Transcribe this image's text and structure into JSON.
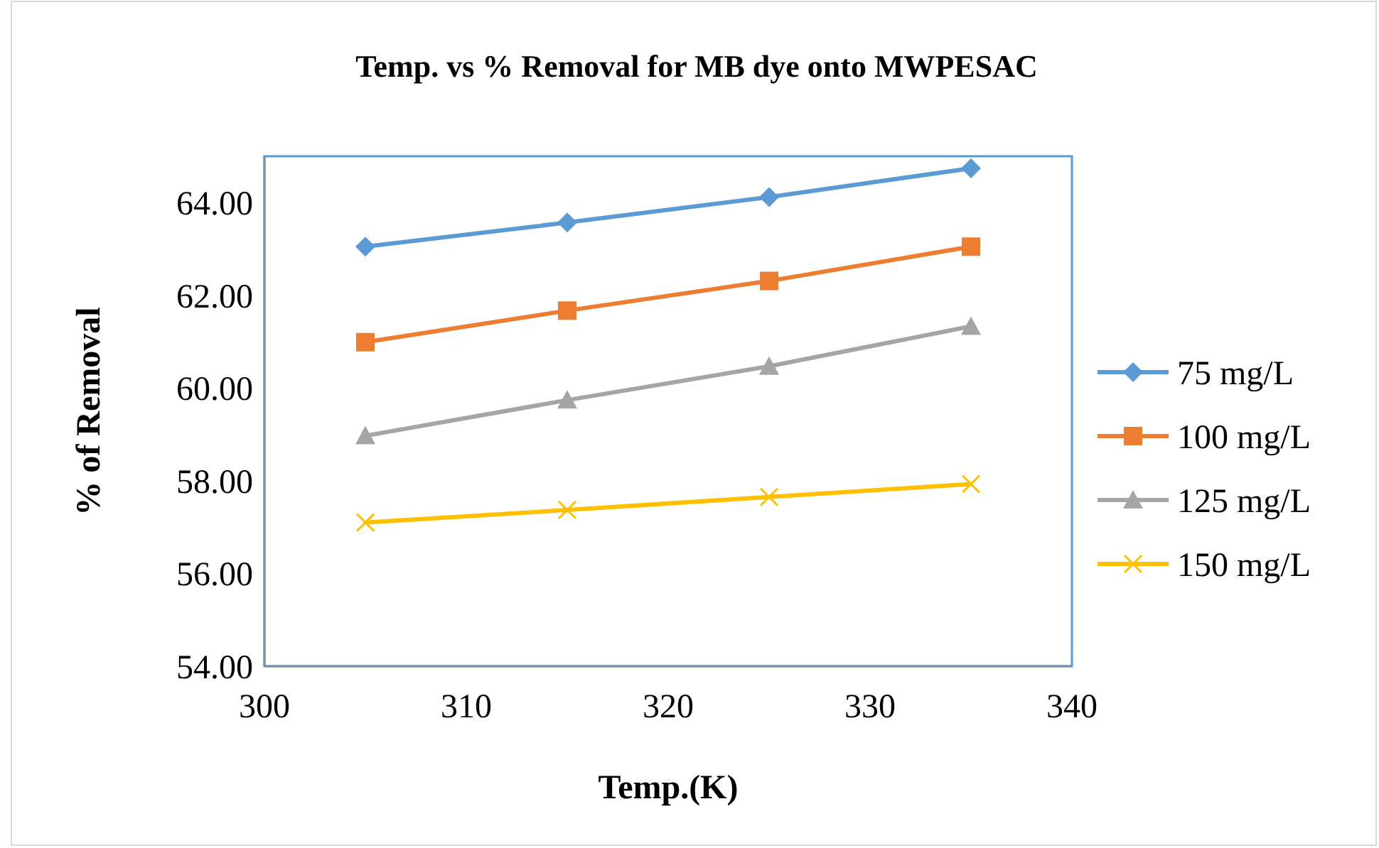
{
  "chart_data": {
    "type": "line",
    "title": "Temp. vs % Removal for MB dye onto MWPESAC",
    "xlabel": "Temp.(K)",
    "ylabel": "% of Removal",
    "x": [
      305,
      315,
      325,
      335
    ],
    "series": [
      {
        "name": "75 mg/L",
        "color": "#5b9bd5",
        "marker": "diamond",
        "values": [
          63.05,
          63.57,
          64.12,
          64.74
        ]
      },
      {
        "name": "100 mg/L",
        "color": "#ed7d31",
        "marker": "square",
        "values": [
          60.99,
          61.67,
          62.31,
          63.05
        ]
      },
      {
        "name": "125 mg/L",
        "color": "#a5a5a5",
        "marker": "triangle",
        "values": [
          58.97,
          59.74,
          60.47,
          61.33
        ]
      },
      {
        "name": "150 mg/L",
        "color": "#ffc000",
        "marker": "cross",
        "values": [
          57.1,
          57.37,
          57.65,
          57.93
        ]
      }
    ],
    "xlim": [
      300,
      340
    ],
    "xticks": [
      300,
      310,
      320,
      330,
      340
    ],
    "ylim": [
      54,
      65
    ],
    "yticks": [
      {
        "value": 54,
        "label": "54.00"
      },
      {
        "value": 56,
        "label": "56.00"
      },
      {
        "value": 58,
        "label": "58.00"
      },
      {
        "value": 60,
        "label": "60.00"
      },
      {
        "value": 62,
        "label": "62.00"
      },
      {
        "value": 64,
        "label": "64.00"
      }
    ],
    "grid": false,
    "legend": "right"
  }
}
